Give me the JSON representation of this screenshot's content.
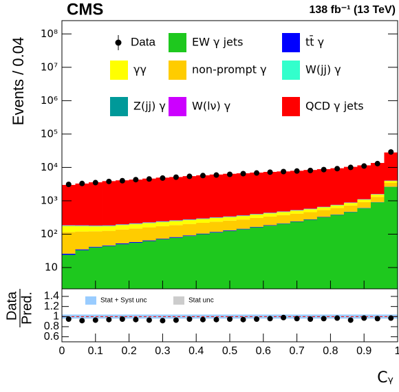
{
  "chart_data": {
    "type": "stacked_histogram",
    "experiment": "CMS",
    "luminosity": "138 fb⁻¹ (13 TeV)",
    "y_label": "Events / 0.04",
    "x_label": "Cᵧ",
    "log_y": true,
    "bins": [
      0,
      0.04,
      0.08,
      0.12,
      0.16,
      0.2,
      0.24,
      0.28,
      0.32,
      0.36,
      0.4,
      0.44,
      0.48,
      0.52,
      0.56,
      0.6,
      0.64,
      0.68,
      0.72,
      0.76,
      0.8,
      0.84,
      0.88,
      0.92,
      0.96,
      1
    ],
    "xlim": [
      0,
      1
    ],
    "xticks": [
      0,
      0.1,
      0.2,
      0.3,
      0.4,
      0.5,
      0.6,
      0.7,
      0.8,
      0.9,
      1
    ],
    "ylim": [
      2.3,
      250000000
    ],
    "yticks": [
      {
        "value": 10,
        "label": "10"
      },
      {
        "value": 100,
        "label": "10²"
      },
      {
        "value": 1000,
        "label": "10³"
      },
      {
        "value": 10000,
        "label": "10⁴"
      },
      {
        "value": 100000,
        "label": "10⁵"
      },
      {
        "value": 1000000,
        "label": "10⁶"
      },
      {
        "value": 10000000,
        "label": "10⁷"
      },
      {
        "value": 100000000,
        "label": "10⁸"
      }
    ],
    "data": {
      "name": "Data",
      "color": "#000000",
      "values": [
        3100,
        3300,
        3500,
        3800,
        4000,
        4300,
        4500,
        4800,
        5100,
        5400,
        5700,
        5900,
        6200,
        6500,
        6800,
        7200,
        7500,
        7800,
        8100,
        8600,
        9200,
        10000,
        11000,
        13000,
        29000
      ]
    },
    "series": [
      {
        "name": "EW γ jets",
        "color": "#1ec81e",
        "values": [
          24,
          33,
          40,
          44,
          50,
          55,
          62,
          70,
          78,
          88,
          100,
          112,
          125,
          140,
          160,
          180,
          205,
          235,
          270,
          320,
          380,
          460,
          600,
          900,
          2600
        ]
      },
      {
        "name": "tt̄ γ",
        "color": "#0000ff",
        "values": [
          2,
          2,
          2,
          2,
          3,
          3,
          3,
          3,
          4,
          4,
          4,
          5,
          5,
          5,
          6,
          6,
          6,
          7,
          7,
          8,
          9,
          10,
          12,
          15,
          30
        ]
      },
      {
        "name": "non-prompt γ",
        "color": "#ffcc00",
        "values": [
          90,
          85,
          80,
          80,
          85,
          90,
          95,
          100,
          105,
          110,
          115,
          120,
          125,
          130,
          140,
          150,
          160,
          170,
          180,
          200,
          220,
          250,
          300,
          400,
          800
        ]
      },
      {
        "name": "γγ",
        "color": "#ffff00",
        "values": [
          60,
          55,
          50,
          48,
          50,
          52,
          55,
          58,
          60,
          62,
          65,
          68,
          70,
          75,
          80,
          85,
          90,
          95,
          100,
          110,
          120,
          140,
          170,
          230,
          500
        ]
      },
      {
        "name": "W(jj) γ",
        "color": "#33ffcc",
        "values": [
          5,
          5,
          5,
          5,
          5,
          6,
          6,
          6,
          7,
          7,
          7,
          8,
          8,
          9,
          9,
          10,
          10,
          11,
          12,
          13,
          14,
          16,
          20,
          25,
          60
        ]
      },
      {
        "name": "Z(jj) γ",
        "color": "#009999",
        "values": [
          2,
          2,
          2,
          2,
          2,
          2,
          2,
          3,
          3,
          3,
          3,
          3,
          3,
          4,
          4,
          4,
          4,
          5,
          5,
          5,
          6,
          7,
          8,
          10,
          25
        ]
      },
      {
        "name": "W(lν) γ",
        "color": "#cc00ff",
        "values": [
          3,
          3,
          3,
          3,
          3,
          3,
          4,
          4,
          4,
          4,
          4,
          5,
          5,
          5,
          5,
          6,
          6,
          6,
          7,
          7,
          8,
          9,
          11,
          14,
          30
        ]
      },
      {
        "name": "QCD γ jets",
        "color": "#ff0000",
        "values": [
          2800,
          3100,
          3400,
          3700,
          3900,
          4100,
          4400,
          4700,
          4900,
          5200,
          5500,
          5800,
          6100,
          6300,
          6600,
          6900,
          7100,
          7400,
          7800,
          8200,
          8700,
          9500,
          10400,
          12000,
          24000
        ]
      }
    ],
    "ratio": {
      "y_label_top": "Data",
      "y_label_bottom": "Pred.",
      "ylim": [
        0.5,
        1.55
      ],
      "yticks": [
        0.6,
        0.8,
        1,
        1.2,
        1.4
      ],
      "values": [
        0.95,
        0.92,
        0.93,
        0.94,
        0.95,
        0.94,
        0.93,
        0.92,
        0.93,
        0.95,
        0.94,
        0.94,
        0.95,
        0.94,
        0.95,
        0.96,
        0.98,
        0.96,
        0.95,
        0.96,
        0.97,
        0.93,
        0.97,
        0.96,
        0.97
      ],
      "bands": [
        {
          "name": "Stat + Syst unc",
          "color": "#99ccff",
          "errors": [
            0.04,
            0.04,
            0.04,
            0.04,
            0.04,
            0.04,
            0.04,
            0.04,
            0.04,
            0.04,
            0.04,
            0.04,
            0.04,
            0.04,
            0.04,
            0.04,
            0.04,
            0.04,
            0.04,
            0.04,
            0.04,
            0.04,
            0.04,
            0.04,
            0.04
          ]
        },
        {
          "name": "Stat unc",
          "color": "#cccccc",
          "errors": [
            0.005,
            0.005,
            0.005,
            0.005,
            0.005,
            0.005,
            0.005,
            0.005,
            0.005,
            0.005,
            0.005,
            0.005,
            0.005,
            0.005,
            0.005,
            0.005,
            0.005,
            0.005,
            0.005,
            0.005,
            0.005,
            0.005,
            0.005,
            0.005,
            0.01
          ]
        }
      ]
    }
  }
}
